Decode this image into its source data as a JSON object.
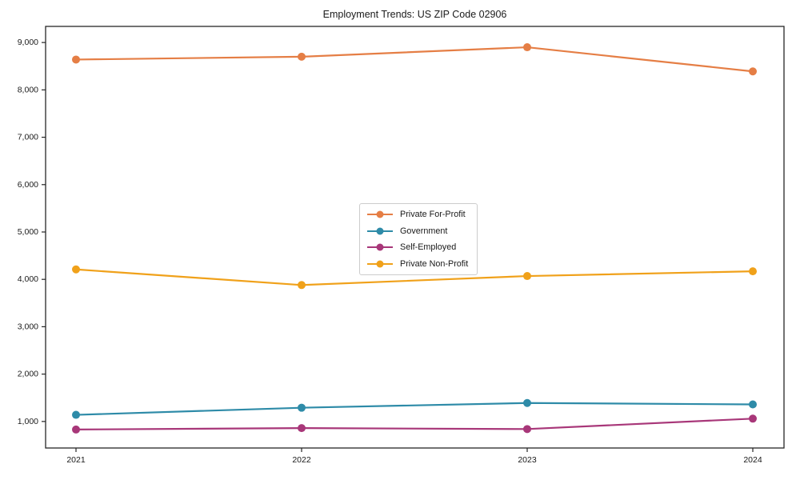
{
  "chart_data": {
    "type": "line",
    "title": "Employment Trends: US ZIP Code 02906",
    "x": [
      "2021",
      "2022",
      "2023",
      "2024"
    ],
    "series": [
      {
        "name": "Private For-Profit",
        "color": "#e57e45",
        "values": [
          8640,
          8700,
          8900,
          8390
        ]
      },
      {
        "name": "Government",
        "color": "#2e8ba8",
        "values": [
          1140,
          1290,
          1390,
          1360
        ]
      },
      {
        "name": "Self-Employed",
        "color": "#a83779",
        "values": [
          830,
          860,
          840,
          1060
        ]
      },
      {
        "name": "Private Non-Profit",
        "color": "#f0a11a",
        "values": [
          4210,
          3880,
          4070,
          4170
        ]
      }
    ],
    "xlabel": "",
    "ylabel": "",
    "ylim": [
      440,
      9340
    ],
    "yticks": [
      1000,
      2000,
      3000,
      4000,
      5000,
      6000,
      7000,
      8000,
      9000
    ],
    "ytick_labels": [
      "1,000",
      "2,000",
      "3,000",
      "4,000",
      "5,000",
      "6,000",
      "7,000",
      "8,000",
      "9,000"
    ],
    "xtick_labels": [
      "2021",
      "2022",
      "2023",
      "2024"
    ],
    "grid": false,
    "legend_position": "center",
    "marker": "circle",
    "axis_color": "#262626"
  }
}
